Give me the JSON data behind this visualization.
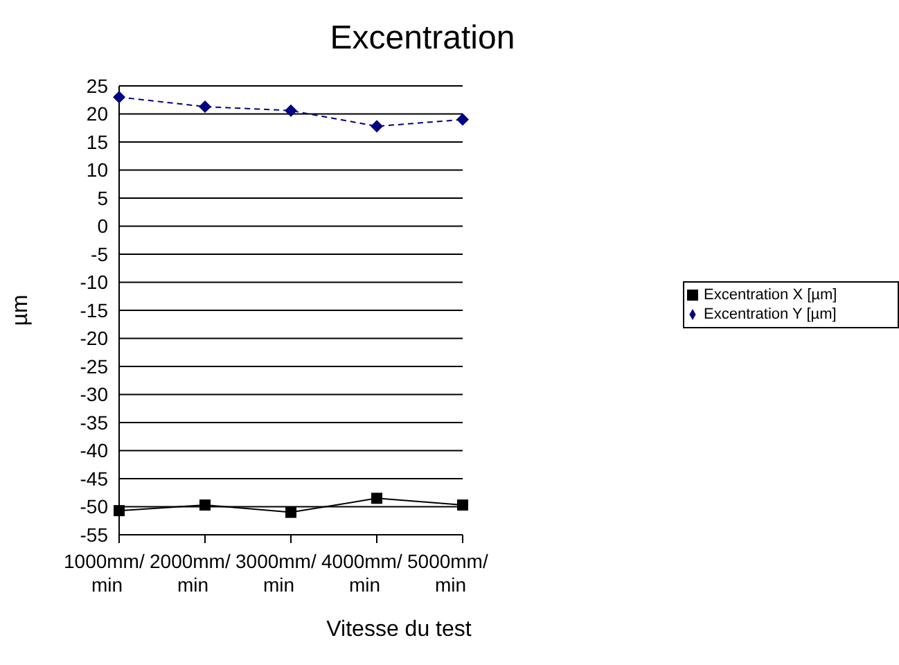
{
  "chart_data": {
    "type": "line",
    "title": "Excentration",
    "xlabel": "Vitesse du test",
    "ylabel": "µm",
    "categories": [
      "1000mm/min",
      "2000mm/min",
      "3000mm/min",
      "4000mm/min",
      "5000mm/min"
    ],
    "series": [
      {
        "name": "Excentration X [µm]",
        "color": "#000000",
        "values": [
          -50.7,
          -49.7,
          -51,
          -48.5,
          -49.7
        ],
        "marker": "square",
        "line_style": "solid"
      },
      {
        "name": "Excentration Y [µm]",
        "color": "#000080",
        "values": [
          23,
          21.3,
          20.6,
          17.8,
          19
        ],
        "marker": "diamond",
        "line_style": "dashed"
      }
    ],
    "ylim": [
      -55,
      25
    ],
    "yticks": [
      -55,
      -50,
      -45,
      -40,
      -35,
      -30,
      -25,
      -20,
      -15,
      -10,
      -5,
      0,
      5,
      10,
      15,
      20,
      25
    ],
    "grid": "y",
    "legend": "right"
  }
}
